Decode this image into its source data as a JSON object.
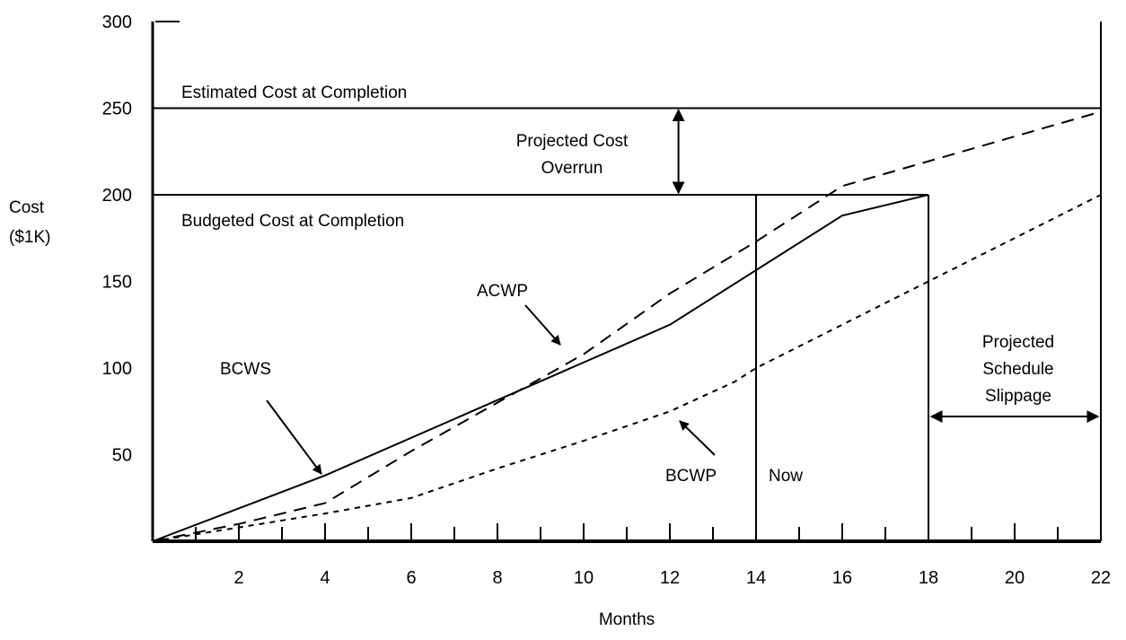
{
  "chart_data": {
    "type": "line",
    "title": "",
    "xlabel": "Months",
    "ylabel": [
      "Cost",
      "($1K)"
    ],
    "xlim": [
      0,
      22
    ],
    "ylim": [
      0,
      300
    ],
    "x_ticks": [
      2,
      4,
      6,
      8,
      10,
      12,
      14,
      16,
      18,
      20,
      22
    ],
    "y_ticks": [
      50,
      100,
      150,
      200,
      250,
      300
    ],
    "grid": false,
    "legend": "none",
    "series": [
      {
        "name": "BCWS",
        "style": "solid",
        "x": [
          0,
          4,
          12,
          16,
          18
        ],
        "y": [
          0,
          38,
          125,
          188,
          200
        ]
      },
      {
        "name": "ACWP",
        "style": "dashed",
        "x": [
          0,
          2,
          4,
          6,
          8,
          10,
          12,
          14,
          16,
          22
        ],
        "y": [
          0,
          10,
          22,
          52,
          80,
          108,
          143,
          173,
          205,
          248
        ]
      },
      {
        "name": "BCWP",
        "style": "dotted",
        "x": [
          0,
          2,
          4,
          6,
          8,
          10,
          12,
          13.5,
          14,
          22
        ],
        "y": [
          0,
          8,
          16,
          25,
          42,
          58,
          75,
          92,
          100,
          200
        ]
      }
    ],
    "reference_lines": {
      "estimated_cost_at_completion": {
        "label": "Estimated Cost at Completion",
        "value": 250
      },
      "budgeted_cost_at_completion": {
        "label": "Budgeted Cost at Completion",
        "value": 200,
        "x_end": 18
      },
      "now": {
        "label": "Now",
        "x": 14
      }
    },
    "annotations": {
      "projected_cost_overrun": {
        "lines": [
          "Projected Cost",
          "Overrun"
        ]
      },
      "projected_schedule_slippage": {
        "lines": [
          "Projected",
          "Schedule",
          "Slippage"
        ]
      }
    }
  }
}
